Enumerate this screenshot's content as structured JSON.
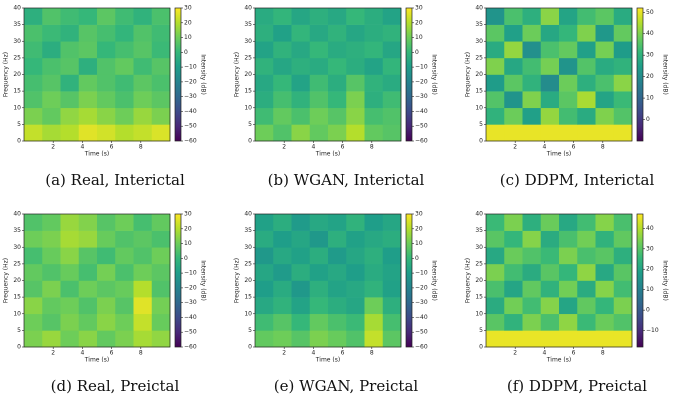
{
  "chart_data": [
    {
      "type": "heatmap",
      "caption": "(a) Real, Interictal",
      "xlabel": "Time (s)",
      "ylabel": "Frequency (Hz)",
      "colorbar_label": "Intensity (dB)",
      "colormap": "viridis",
      "xlim": [
        0,
        10
      ],
      "xticks": [
        2,
        4,
        6,
        8
      ],
      "ylim": [
        0,
        40
      ],
      "yticks": [
        0,
        5,
        10,
        15,
        20,
        25,
        30,
        35,
        40
      ],
      "clim": [
        -60,
        30
      ],
      "cticks": [
        {
          "value": -60,
          "label": "−60"
        },
        {
          "value": -50,
          "label": "−50"
        },
        {
          "value": -40,
          "label": "−40"
        },
        {
          "value": -30,
          "label": "−30"
        },
        {
          "value": -20,
          "label": "−20"
        },
        {
          "value": -10,
          "label": "−10"
        },
        0,
        10,
        20,
        30
      ],
      "values": [
        [
          22,
          18,
          20,
          26,
          24,
          20,
          22,
          25
        ],
        [
          12,
          8,
          15,
          18,
          14,
          10,
          16,
          12
        ],
        [
          5,
          10,
          6,
          12,
          8,
          4,
          10,
          7
        ],
        [
          3,
          6,
          -2,
          8,
          5,
          2,
          7,
          4
        ],
        [
          0,
          4,
          6,
          -3,
          5,
          8,
          2,
          6
        ],
        [
          2,
          -4,
          5,
          7,
          0,
          3,
          6,
          1
        ],
        [
          4,
          1,
          -2,
          6,
          3,
          -1,
          5,
          2
        ],
        [
          -3,
          5,
          2,
          0,
          7,
          2,
          -2,
          4
        ]
      ]
    },
    {
      "type": "heatmap",
      "caption": "(b) WGAN, Interictal",
      "xlabel": "Time (s)",
      "ylabel": "Frequency (Hz)",
      "colorbar_label": "Intensity (dB)",
      "colormap": "viridis",
      "xlim": [
        0,
        10
      ],
      "xticks": [
        2,
        4,
        6,
        8
      ],
      "ylim": [
        0,
        40
      ],
      "yticks": [
        0,
        5,
        10,
        15,
        20,
        25,
        30,
        35,
        40
      ],
      "clim": [
        -60,
        30
      ],
      "cticks": [
        {
          "value": -60,
          "label": "−60"
        },
        {
          "value": -50,
          "label": "−50"
        },
        {
          "value": -40,
          "label": "−40"
        },
        {
          "value": -30,
          "label": "−30"
        },
        {
          "value": -20,
          "label": "−20"
        },
        {
          "value": -10,
          "label": "−10"
        },
        0,
        10,
        20,
        30
      ],
      "values": [
        [
          10,
          5,
          14,
          8,
          12,
          20,
          8,
          6
        ],
        [
          2,
          8,
          4,
          10,
          6,
          14,
          3,
          5
        ],
        [
          -4,
          3,
          -2,
          5,
          0,
          12,
          -3,
          2
        ],
        [
          -6,
          0,
          -8,
          2,
          -4,
          6,
          -2,
          -5
        ],
        [
          -2,
          -7,
          -3,
          -5,
          0,
          -4,
          -8,
          -1
        ],
        [
          -8,
          -2,
          -6,
          0,
          -5,
          -3,
          -1,
          -7
        ],
        [
          -3,
          -9,
          -1,
          -6,
          -2,
          -7,
          -4,
          -2
        ],
        [
          -5,
          -1,
          -7,
          -3,
          -6,
          0,
          -4,
          -8
        ]
      ]
    },
    {
      "type": "heatmap",
      "caption": "(c) DDPM, Interictal",
      "xlabel": "Time (s)",
      "ylabel": "Frequency (Hz)",
      "colorbar_label": "Intensity (dB)",
      "colormap": "viridis",
      "xlim": [
        0,
        10
      ],
      "xticks": [
        2,
        4,
        6,
        8
      ],
      "ylim": [
        0,
        40
      ],
      "yticks": [
        0,
        5,
        10,
        15,
        20,
        25,
        30,
        35,
        40
      ],
      "clim": [
        -10,
        52
      ],
      "cticks": [
        0,
        10,
        20,
        30,
        40,
        50
      ],
      "values": [
        [
          50,
          50,
          50,
          50,
          50,
          50,
          50,
          50
        ],
        [
          30,
          38,
          25,
          42,
          33,
          28,
          40,
          35
        ],
        [
          35,
          22,
          40,
          28,
          36,
          44,
          26,
          32
        ],
        [
          24,
          36,
          30,
          20,
          38,
          29,
          34,
          41
        ],
        [
          40,
          27,
          33,
          39,
          22,
          35,
          28,
          30
        ],
        [
          28,
          42,
          21,
          34,
          37,
          25,
          39,
          24
        ],
        [
          36,
          25,
          38,
          27,
          31,
          40,
          23,
          37
        ],
        [
          22,
          34,
          29,
          41,
          26,
          33,
          36,
          28
        ]
      ]
    },
    {
      "type": "heatmap",
      "caption": "(d) Real, Preictal",
      "xlabel": "Time (s)",
      "ylabel": "Frequency (Hz)",
      "colorbar_label": "Intensity (dB)",
      "colormap": "viridis",
      "xlim": [
        0,
        10
      ],
      "xticks": [
        2,
        4,
        6,
        8
      ],
      "ylim": [
        0,
        40
      ],
      "yticks": [
        0,
        5,
        10,
        15,
        20,
        25,
        30,
        35,
        40
      ],
      "clim": [
        -60,
        30
      ],
      "cticks": [
        {
          "value": -60,
          "label": "−60"
        },
        {
          "value": -50,
          "label": "−50"
        },
        {
          "value": -40,
          "label": "−40"
        },
        {
          "value": -30,
          "label": "−30"
        },
        {
          "value": -20,
          "label": "−20"
        },
        {
          "value": -10,
          "label": "−10"
        },
        0,
        10,
        20,
        30
      ],
      "values": [
        [
          12,
          16,
          10,
          14,
          8,
          12,
          18,
          15
        ],
        [
          10,
          6,
          12,
          8,
          14,
          10,
          22,
          9
        ],
        [
          14,
          8,
          10,
          5,
          12,
          6,
          26,
          11
        ],
        [
          6,
          12,
          4,
          10,
          7,
          9,
          20,
          5
        ],
        [
          8,
          5,
          9,
          3,
          11,
          4,
          10,
          7
        ],
        [
          3,
          9,
          14,
          6,
          2,
          8,
          5,
          10
        ],
        [
          10,
          12,
          18,
          16,
          9,
          5,
          7,
          4
        ],
        [
          5,
          8,
          16,
          13,
          6,
          10,
          3,
          8
        ]
      ]
    },
    {
      "type": "heatmap",
      "caption": "(e) WGAN, Preictal",
      "xlabel": "Time (s)",
      "ylabel": "Frequency (Hz)",
      "colorbar_label": "Intensity (dB)",
      "colormap": "viridis",
      "xlim": [
        0,
        10
      ],
      "xticks": [
        2,
        4,
        6,
        8
      ],
      "ylim": [
        0,
        40
      ],
      "yticks": [
        0,
        5,
        10,
        15,
        20,
        25,
        30,
        35,
        40
      ],
      "clim": [
        -60,
        30
      ],
      "cticks": [
        {
          "value": -60,
          "label": "−60"
        },
        {
          "value": -50,
          "label": "−50"
        },
        {
          "value": -40,
          "label": "−40"
        },
        {
          "value": -30,
          "label": "−30"
        },
        {
          "value": -20,
          "label": "−20"
        },
        {
          "value": -10,
          "label": "−10"
        },
        0,
        10,
        20,
        30
      ],
      "values": [
        [
          8,
          10,
          6,
          12,
          9,
          5,
          22,
          7
        ],
        [
          2,
          6,
          0,
          8,
          4,
          1,
          18,
          3
        ],
        [
          -6,
          -2,
          -8,
          0,
          -4,
          -7,
          10,
          -3
        ],
        [
          -10,
          -5,
          -12,
          -3,
          -8,
          -6,
          -2,
          -9
        ],
        [
          -7,
          -11,
          -4,
          -9,
          -6,
          -10,
          -5,
          -8
        ],
        [
          -12,
          -6,
          -9,
          -4,
          -11,
          -7,
          -3,
          -10
        ],
        [
          -5,
          -10,
          -7,
          -12,
          -3,
          -9,
          -6,
          -4
        ],
        [
          -9,
          -4,
          -11,
          -6,
          -8,
          -2,
          -10,
          -7
        ]
      ]
    },
    {
      "type": "heatmap",
      "caption": "(f) DDPM, Preictal",
      "xlabel": "Time (s)",
      "ylabel": "Frequency (Hz)",
      "colorbar_label": "Intensity (dB)",
      "colormap": "viridis",
      "xlim": [
        0,
        10
      ],
      "xticks": [
        2,
        4,
        6,
        8
      ],
      "ylim": [
        0,
        40
      ],
      "yticks": [
        0,
        5,
        10,
        15,
        20,
        25,
        30,
        35,
        40
      ],
      "clim": [
        -18,
        47
      ],
      "cticks": [
        {
          "value": -10,
          "label": "−10"
        },
        0,
        10,
        20,
        30,
        40
      ],
      "values": [
        [
          45,
          45,
          45,
          45,
          45,
          45,
          45,
          45
        ],
        [
          30,
          24,
          34,
          28,
          36,
          26,
          32,
          29
        ],
        [
          22,
          33,
          27,
          35,
          20,
          31,
          25,
          34
        ],
        [
          28,
          20,
          31,
          24,
          33,
          22,
          35,
          27
        ],
        [
          34,
          27,
          22,
          30,
          25,
          36,
          21,
          30
        ],
        [
          21,
          32,
          29,
          26,
          34,
          28,
          30,
          23
        ],
        [
          30,
          25,
          35,
          22,
          28,
          33,
          24,
          31
        ],
        [
          26,
          34,
          23,
          32,
          21,
          27,
          35,
          28
        ]
      ]
    }
  ]
}
